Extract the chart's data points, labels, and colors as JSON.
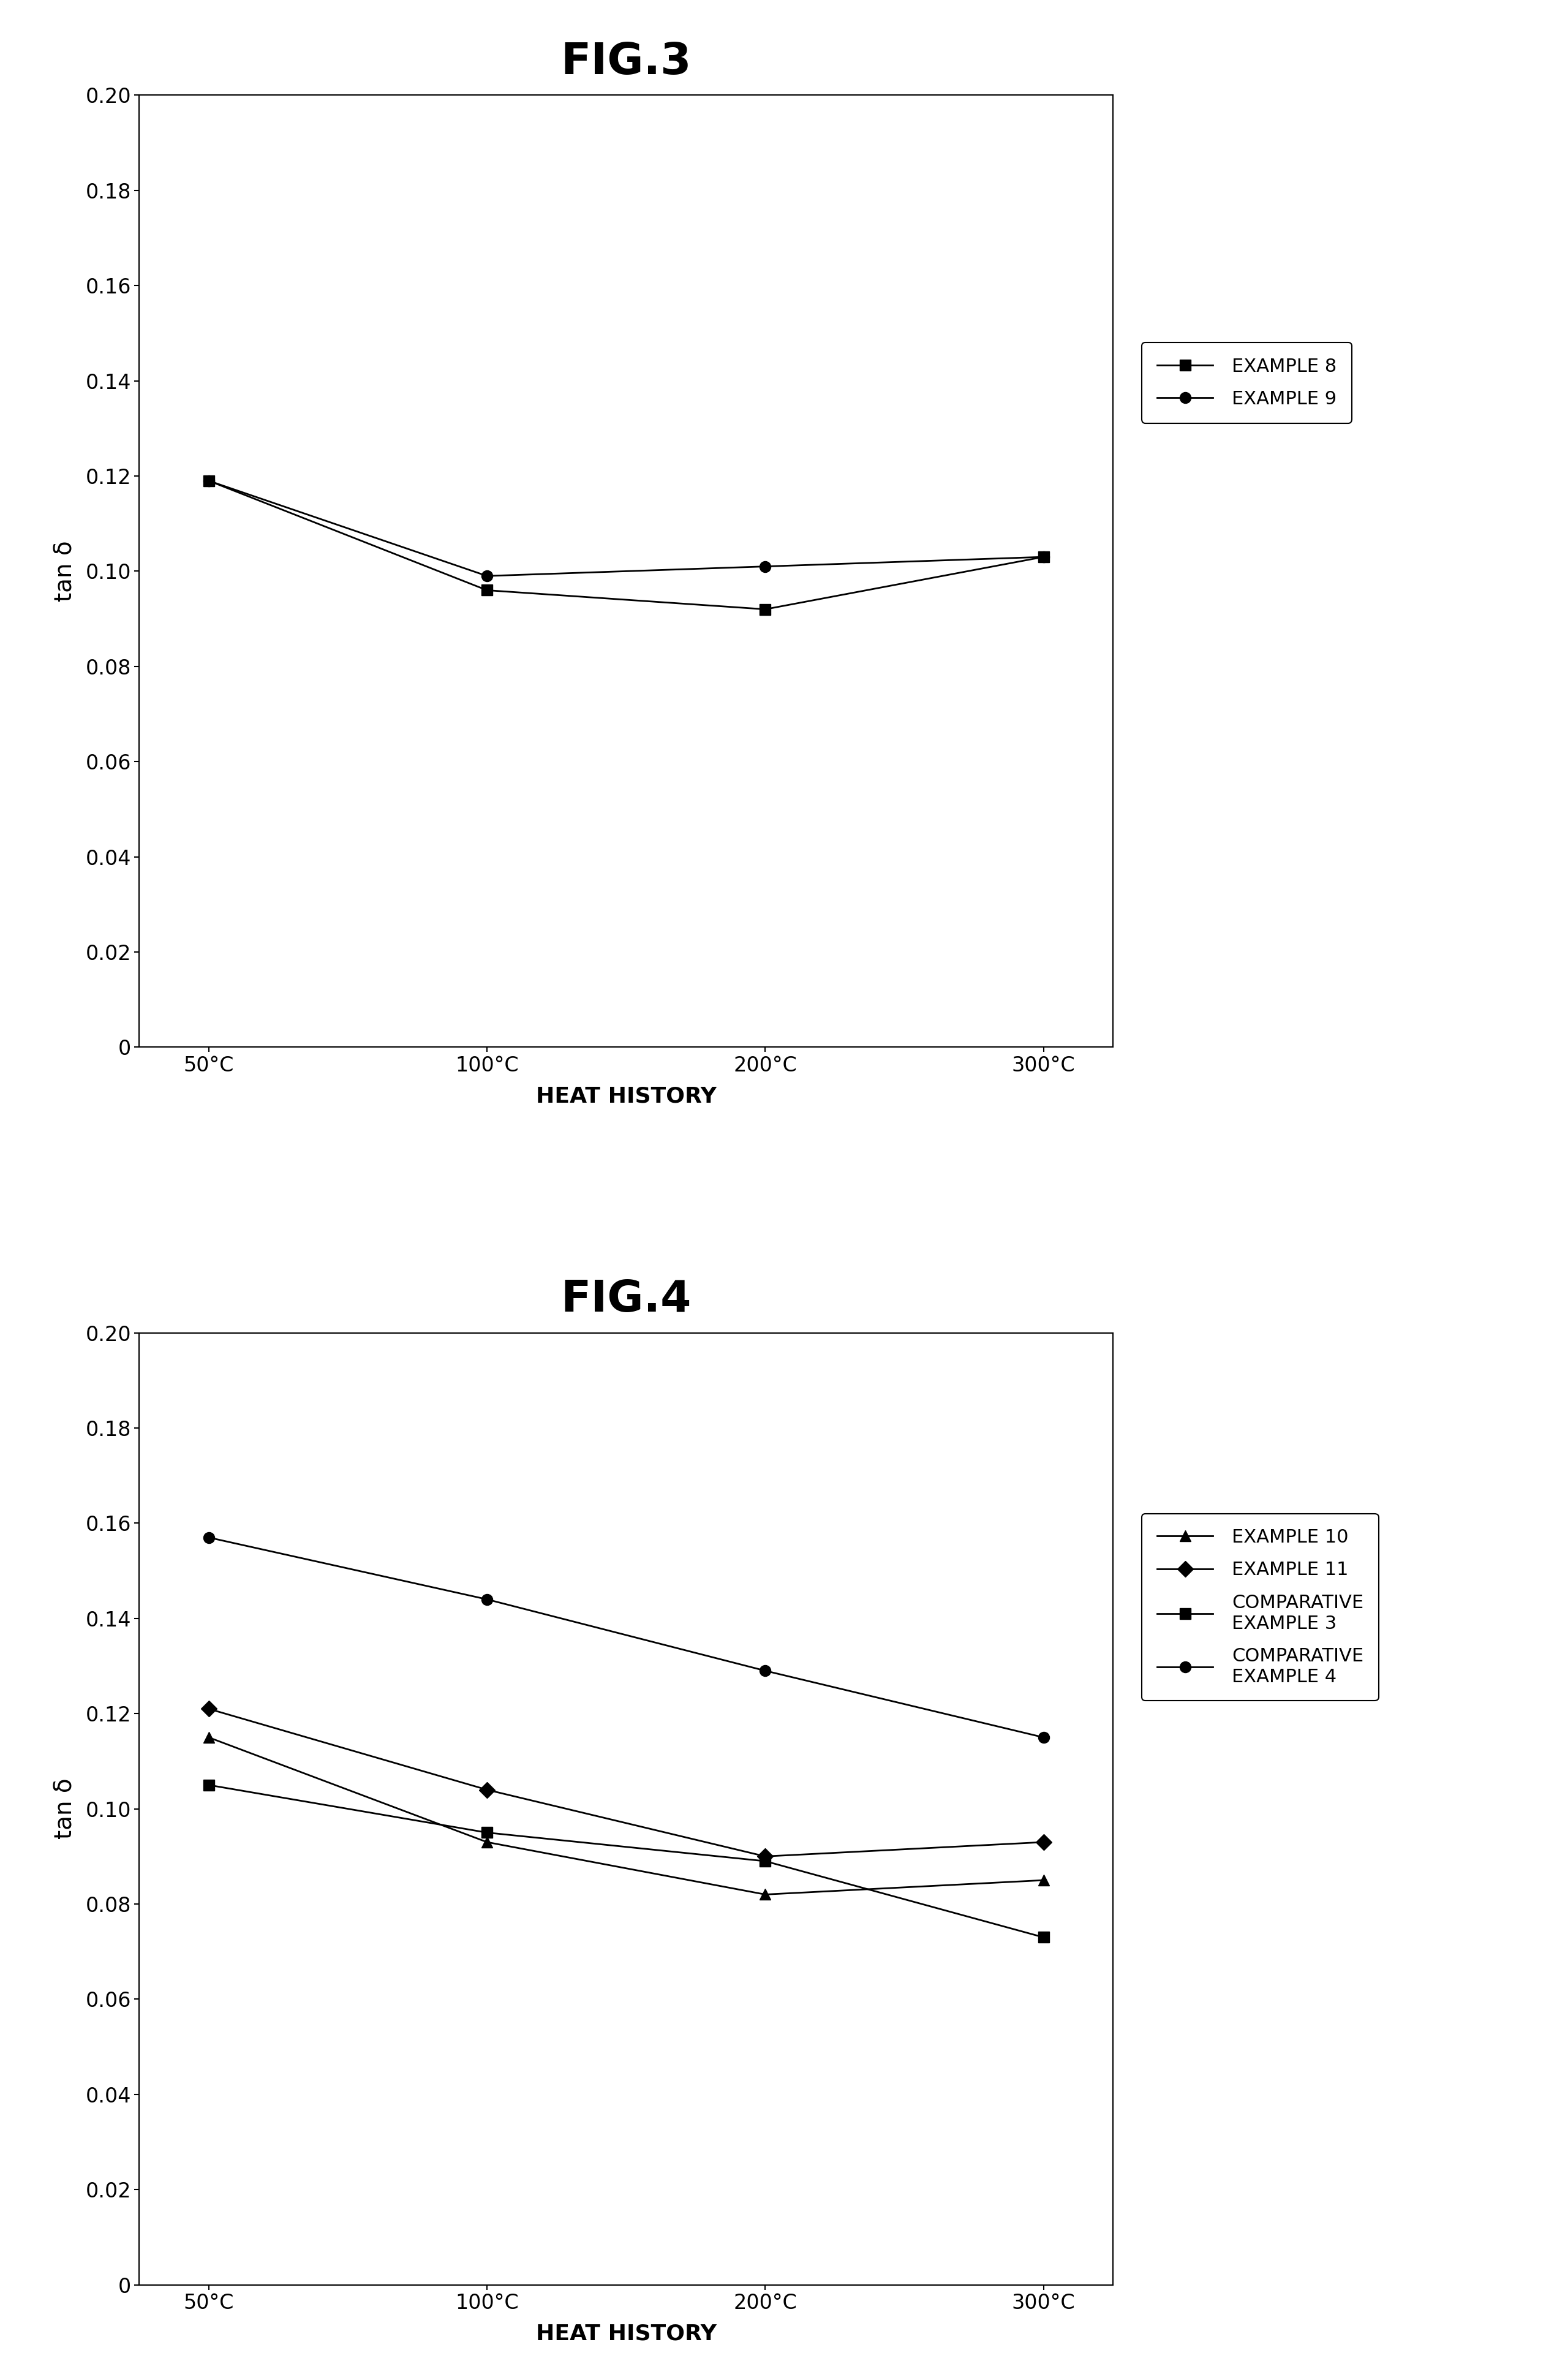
{
  "fig3": {
    "title": "FIG.3",
    "x_labels": [
      "50°C",
      "100°C",
      "200°C",
      "300°C"
    ],
    "x_values": [
      0,
      1,
      2,
      3
    ],
    "series": [
      {
        "label": "EXAMPLE 8",
        "values": [
          0.119,
          0.096,
          0.092,
          0.103
        ],
        "marker": "s",
        "color": "#000000"
      },
      {
        "label": "EXAMPLE 9",
        "values": [
          0.119,
          0.099,
          0.101,
          0.103
        ],
        "marker": "o",
        "color": "#000000"
      }
    ],
    "ylabel": "tan δ",
    "xlabel": "HEAT HISTORY",
    "ylim": [
      0,
      0.2
    ],
    "yticks": [
      0,
      0.02,
      0.04,
      0.06,
      0.08,
      0.1,
      0.12,
      0.14,
      0.16,
      0.18,
      0.2
    ]
  },
  "fig4": {
    "title": "FIG.4",
    "x_labels": [
      "50°C",
      "100°C",
      "200°C",
      "300°C"
    ],
    "x_values": [
      0,
      1,
      2,
      3
    ],
    "series": [
      {
        "label": "EXAMPLE 10",
        "values": [
          0.115,
          0.093,
          0.082,
          0.085
        ],
        "marker": "^",
        "color": "#000000"
      },
      {
        "label": "EXAMPLE 11",
        "values": [
          0.121,
          0.104,
          0.09,
          0.093
        ],
        "marker": "D",
        "color": "#000000"
      },
      {
        "label": "COMPARATIVE\nEXAMPLE 3",
        "values": [
          0.105,
          0.095,
          0.089,
          0.073
        ],
        "marker": "s",
        "color": "#000000"
      },
      {
        "label": "COMPARATIVE\nEXAMPLE 4",
        "values": [
          0.157,
          0.144,
          0.129,
          0.115
        ],
        "marker": "o",
        "color": "#000000"
      }
    ],
    "ylabel": "tan δ",
    "xlabel": "HEAT HISTORY",
    "ylim": [
      0,
      0.2
    ],
    "yticks": [
      0,
      0.02,
      0.04,
      0.06,
      0.08,
      0.1,
      0.12,
      0.14,
      0.16,
      0.18,
      0.2
    ]
  },
  "background_color": "#ffffff",
  "line_color": "#000000",
  "marker_size": 13,
  "line_width": 2.0,
  "title_fontsize": 52,
  "label_fontsize": 26,
  "tick_fontsize": 24,
  "legend_fontsize": 22
}
